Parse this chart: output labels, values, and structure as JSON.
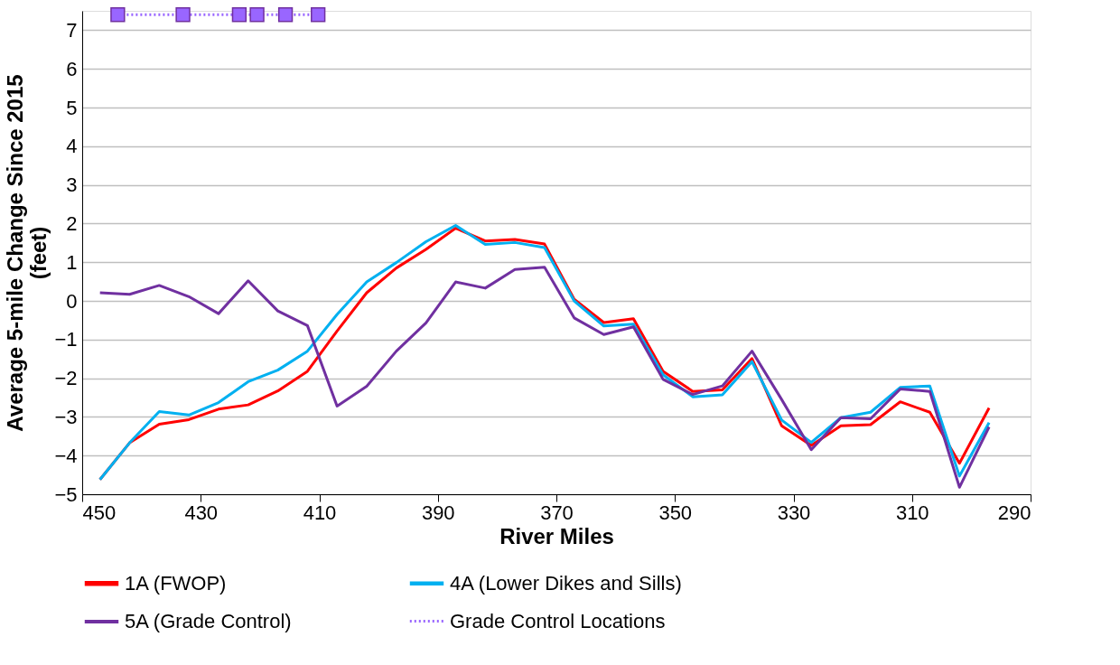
{
  "chart_data": {
    "type": "line",
    "xlabel": "River Miles",
    "ylabel": "Average 5-mile Change Since 2015\n(feet)",
    "x": [
      447,
      442,
      437,
      432,
      427,
      422,
      417,
      412,
      407,
      402,
      397,
      392,
      387,
      382,
      377,
      372,
      367,
      362,
      357,
      352,
      347,
      342,
      337,
      332,
      327,
      322,
      317,
      312,
      307,
      302,
      297
    ],
    "series": [
      {
        "name": "1A (FWOP)",
        "color": "#ff0000",
        "values": [
          -4.62,
          -3.67,
          -3.19,
          -3.07,
          -2.8,
          -2.69,
          -2.33,
          -1.82,
          -0.78,
          0.21,
          0.85,
          1.33,
          1.88,
          1.55,
          1.59,
          1.47,
          0.04,
          -0.56,
          -0.46,
          -1.82,
          -2.34,
          -2.3,
          -1.49,
          -3.23,
          -3.74,
          -3.23,
          -3.2,
          -2.61,
          -2.88,
          -4.2,
          -2.77
        ]
      },
      {
        "name": "4A (Lower Dikes and Sills)",
        "color": "#00b0f0",
        "values": [
          -4.62,
          -3.67,
          -2.86,
          -2.95,
          -2.63,
          -2.09,
          -1.79,
          -1.3,
          -0.35,
          0.49,
          0.99,
          1.53,
          1.95,
          1.46,
          1.51,
          1.38,
          0.0,
          -0.65,
          -0.6,
          -1.91,
          -2.48,
          -2.43,
          -1.57,
          -3.08,
          -3.66,
          -3.02,
          -2.88,
          -2.24,
          -2.2,
          -4.53,
          -3.15
        ]
      },
      {
        "name": "5A (Grade Control)",
        "color": "#7030a0",
        "values": [
          0.21,
          0.17,
          0.4,
          0.11,
          -0.33,
          0.52,
          -0.26,
          -0.64,
          -2.72,
          -2.21,
          -1.3,
          -0.57,
          0.49,
          0.33,
          0.81,
          0.87,
          -0.44,
          -0.87,
          -0.67,
          -2.03,
          -2.42,
          -2.2,
          -1.3,
          -2.55,
          -3.85,
          -3.02,
          -3.05,
          -2.28,
          -2.34,
          -4.82,
          -3.26
        ]
      },
      {
        "name": "Grade Control Locations",
        "color": "#9966ff",
        "type": "line",
        "marker": "square",
        "line_style": "dotted",
        "x": [
          444,
          433,
          423.5,
          420.5,
          415.7,
          410.2
        ],
        "values": [
          7.4,
          7.4,
          7.4,
          7.4,
          7.4,
          7.4
        ]
      }
    ],
    "xlim": [
      450,
      290
    ],
    "xticks": [
      450,
      430,
      410,
      390,
      370,
      350,
      330,
      310,
      290
    ],
    "ylim": [
      -5,
      7.5
    ],
    "yticks": [
      -5,
      -4,
      -3,
      -2,
      -1,
      0,
      1,
      2,
      3,
      4,
      5,
      6,
      7
    ],
    "grid": "y",
    "legend": "bottom",
    "marker": "none",
    "line_style": "solid"
  }
}
